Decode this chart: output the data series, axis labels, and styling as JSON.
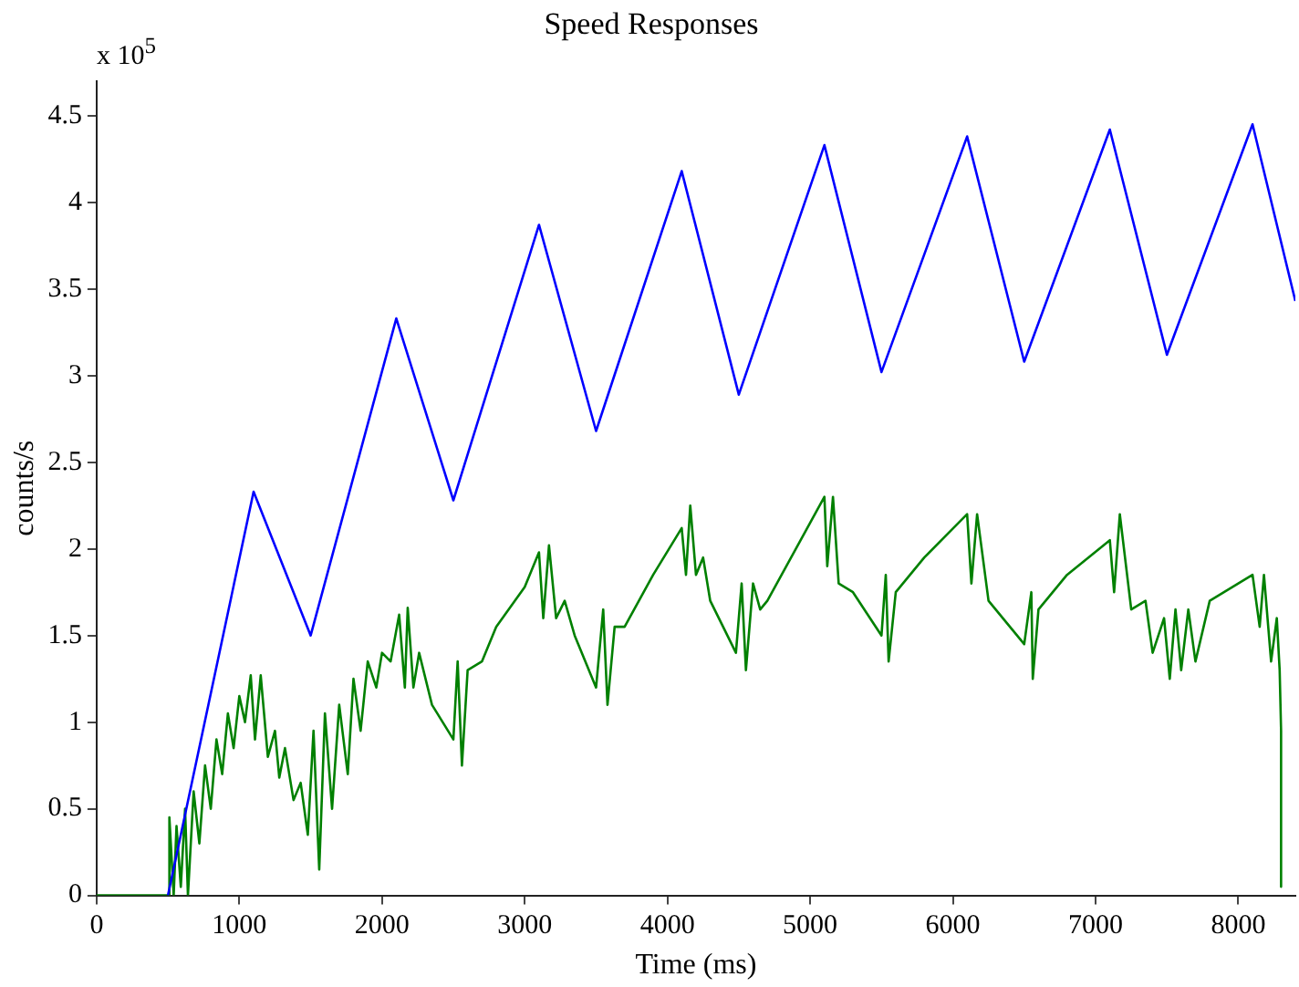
{
  "chart_data": {
    "type": "line",
    "title": "Speed Responses",
    "xlabel": "Time (ms)",
    "ylabel": "counts/s",
    "annotations": [
      "x 10$^{5}$"
    ],
    "xlim": [
      0,
      8400
    ],
    "xticks": [
      0,
      1000,
      2000,
      3000,
      4000,
      5000,
      6000,
      7000,
      8000
    ],
    "ylim": [
      0,
      4.7
    ],
    "yticks": [
      0,
      0.5,
      1,
      1.5,
      2,
      2.5,
      3,
      3.5,
      4,
      4.5
    ],
    "grid": false,
    "legend": false,
    "marker": "none",
    "line_style": "solid",
    "series": [
      {
        "color": "#0000ff",
        "x": [
          500,
          1100,
          1500,
          2100,
          2500,
          3100,
          3500,
          4100,
          4500,
          5100,
          5500,
          6100,
          6500,
          7100,
          7500,
          8100,
          8400
        ],
        "values": [
          0,
          2.33,
          1.5,
          3.33,
          2.28,
          3.87,
          2.68,
          4.18,
          2.89,
          4.33,
          3.02,
          4.38,
          3.08,
          4.42,
          3.12,
          4.45,
          3.43
        ]
      },
      {
        "color": "#008000",
        "x": [
          0,
          500,
          510,
          540,
          560,
          590,
          620,
          640,
          680,
          720,
          760,
          800,
          840,
          880,
          920,
          960,
          1000,
          1040,
          1080,
          1110,
          1150,
          1200,
          1250,
          1280,
          1320,
          1380,
          1430,
          1480,
          1520,
          1560,
          1600,
          1650,
          1700,
          1760,
          1800,
          1850,
          1900,
          1960,
          2000,
          2060,
          2120,
          2160,
          2180,
          2220,
          2260,
          2350,
          2500,
          2530,
          2560,
          2600,
          2700,
          2800,
          3000,
          3100,
          3130,
          3170,
          3220,
          3280,
          3350,
          3500,
          3550,
          3580,
          3630,
          3700,
          3900,
          4100,
          4130,
          4160,
          4200,
          4250,
          4300,
          4480,
          4520,
          4550,
          4600,
          4650,
          4700,
          5000,
          5100,
          5120,
          5160,
          5200,
          5300,
          5500,
          5530,
          5550,
          5600,
          5800,
          6100,
          6130,
          6170,
          6250,
          6500,
          6550,
          6560,
          6600,
          6800,
          7100,
          7130,
          7170,
          7250,
          7350,
          7400,
          7480,
          7520,
          7560,
          7600,
          7650,
          7700,
          7800,
          7900,
          8000,
          8100,
          8150,
          8180,
          8230,
          8270,
          8290,
          8300,
          8300
        ],
        "values": [
          0,
          0,
          0.45,
          0,
          0.4,
          0.05,
          0.5,
          0,
          0.6,
          0.3,
          0.75,
          0.5,
          0.9,
          0.7,
          1.05,
          0.85,
          1.15,
          1,
          1.27,
          0.9,
          1.27,
          0.8,
          0.95,
          0.68,
          0.85,
          0.55,
          0.65,
          0.35,
          0.95,
          0.15,
          1.05,
          0.5,
          1.1,
          0.7,
          1.25,
          0.95,
          1.35,
          1.2,
          1.4,
          1.35,
          1.62,
          1.2,
          1.66,
          1.2,
          1.4,
          1.1,
          0.9,
          1.35,
          0.75,
          1.3,
          1.35,
          1.55,
          1.78,
          1.98,
          1.6,
          2.02,
          1.6,
          1.7,
          1.5,
          1.2,
          1.65,
          1.1,
          1.55,
          1.55,
          1.85,
          2.12,
          1.85,
          2.25,
          1.85,
          1.95,
          1.7,
          1.4,
          1.8,
          1.3,
          1.8,
          1.65,
          1.7,
          2.15,
          2.3,
          1.9,
          2.3,
          1.8,
          1.75,
          1.5,
          1.85,
          1.35,
          1.75,
          1.95,
          2.2,
          1.8,
          2.2,
          1.7,
          1.45,
          1.75,
          1.25,
          1.65,
          1.85,
          2.05,
          1.75,
          2.2,
          1.65,
          1.7,
          1.4,
          1.6,
          1.25,
          1.65,
          1.3,
          1.65,
          1.35,
          1.7,
          1.75,
          1.8,
          1.85,
          1.55,
          1.85,
          1.35,
          1.6,
          1.3,
          0.95,
          0.05
        ]
      }
    ]
  }
}
